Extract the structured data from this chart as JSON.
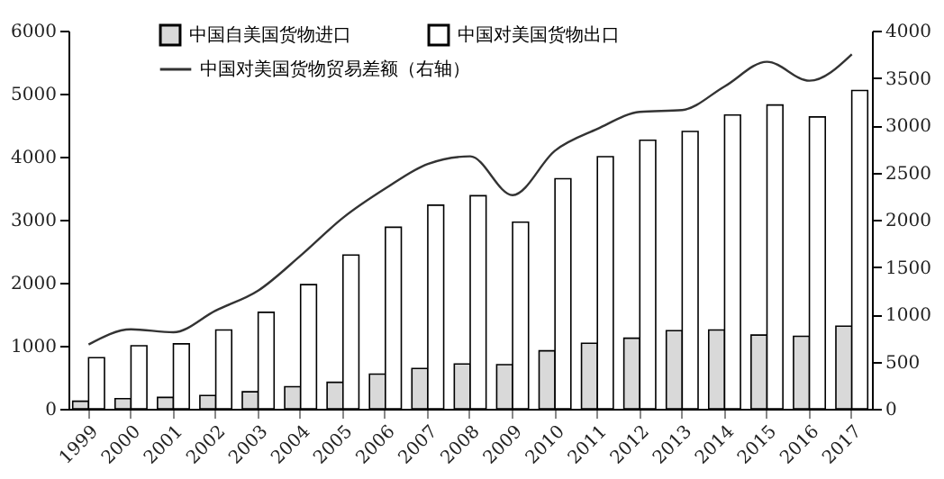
{
  "chart_data": {
    "type": "bar",
    "categories": [
      "1999",
      "2000",
      "2001",
      "2002",
      "2003",
      "2004",
      "2005",
      "2006",
      "2007",
      "2008",
      "2009",
      "2010",
      "2011",
      "2012",
      "2013",
      "2014",
      "2015",
      "2016",
      "2017"
    ],
    "series": [
      {
        "name": "中国自美国货物进口",
        "color": "#d9d9d9",
        "values": [
          120,
          160,
          180,
          210,
          270,
          350,
          420,
          550,
          640,
          710,
          700,
          920,
          1040,
          1120,
          1240,
          1250,
          1170,
          1150,
          1310
        ]
      },
      {
        "name": "中国对美国货物出口",
        "color": "#ffffff",
        "values": [
          810,
          1000,
          1030,
          1250,
          1530,
          1970,
          2440,
          2880,
          3230,
          3380,
          2960,
          3650,
          4000,
          4260,
          4400,
          4660,
          4820,
          4630,
          5050
        ]
      },
      {
        "name": "中国对美国货物贸易差额（右轴）",
        "type": "line",
        "axis": "y2",
        "color": "#333333",
        "values": [
          680,
          840,
          810,
          1040,
          1250,
          1620,
          2020,
          2330,
          2590,
          2670,
          2260,
          2730,
          2960,
          3140,
          3160,
          3410,
          3670,
          3470,
          3750
        ]
      }
    ],
    "ylim": [
      0,
      6000
    ],
    "yticks": [
      0,
      1000,
      2000,
      3000,
      4000,
      5000,
      6000
    ],
    "y2lim": [
      0,
      4000
    ],
    "y2ticks": [
      0,
      500,
      1000,
      1500,
      2000,
      2500,
      3000,
      3500,
      4000
    ],
    "grid": false,
    "legend": "top"
  }
}
